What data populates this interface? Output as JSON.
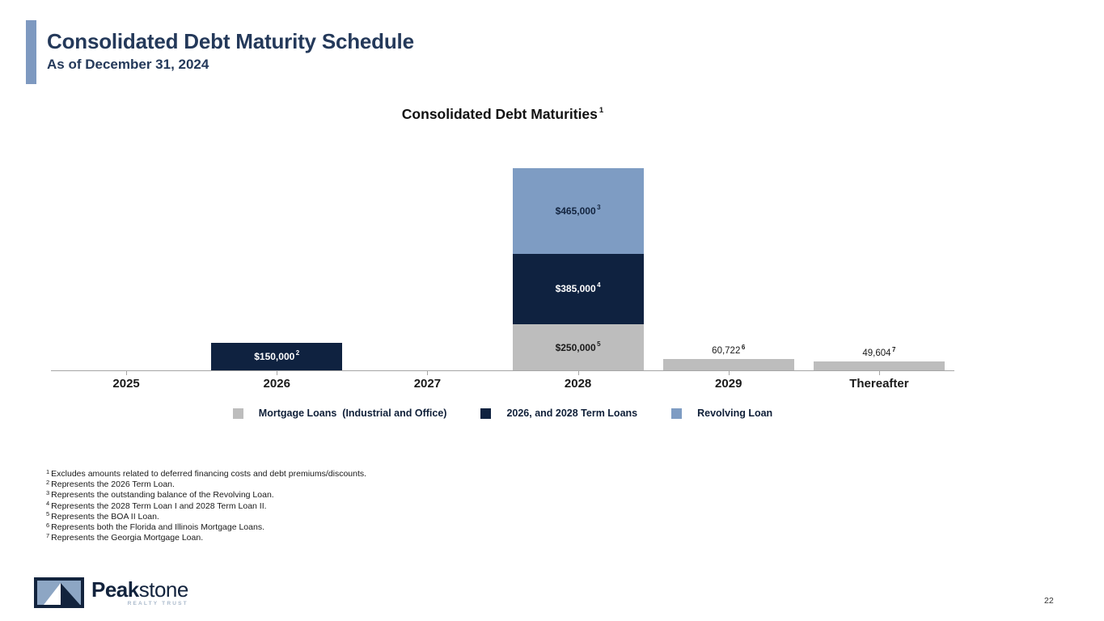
{
  "header": {
    "title": "Consolidated Debt Maturity Schedule",
    "subtitle": "As of December 31, 2024"
  },
  "chart_data": {
    "type": "stacked-bar",
    "title": "Consolidated Debt Maturities",
    "title_superscript": "1",
    "xlabel": "",
    "ylabel": "",
    "y_axis_visible": false,
    "grid": false,
    "legend_position": "bottom",
    "axis_color": "#a6a6a6",
    "categories": [
      "2025",
      "2026",
      "2027",
      "2028",
      "2029",
      "Thereafter"
    ],
    "series": [
      {
        "name": "Mortgage Loans  (Industrial and Office)",
        "color": "#bdbdbd",
        "label_color": "#1a1a1a",
        "values": [
          null,
          null,
          null,
          250000,
          60722,
          49604
        ],
        "labels": [
          null,
          null,
          null,
          "$250,000",
          "60,722",
          "49,604"
        ],
        "sups": [
          null,
          null,
          null,
          "5",
          "6",
          "7"
        ]
      },
      {
        "name": "2026, and 2028 Term Loans",
        "color": "#0f2240",
        "label_color": "#ffffff",
        "values": [
          null,
          150000,
          null,
          385000,
          null,
          null
        ],
        "labels": [
          null,
          "$150,000",
          null,
          "$385,000",
          null,
          null
        ],
        "sups": [
          null,
          "2",
          null,
          "4",
          null,
          null
        ]
      },
      {
        "name": "Revolving Loan",
        "color": "#7e9cc3",
        "label_color": "#13243f",
        "values": [
          null,
          null,
          null,
          465000,
          null,
          null
        ],
        "labels": [
          null,
          null,
          null,
          "$465,000",
          null,
          null
        ],
        "sups": [
          null,
          null,
          null,
          "3",
          null,
          null
        ]
      }
    ]
  },
  "footnotes": [
    {
      "sup": "1",
      "text": "Excludes amounts related to deferred financing costs and debt premiums/discounts."
    },
    {
      "sup": "2",
      "text": "Represents the 2026 Term Loan."
    },
    {
      "sup": "3",
      "text": "Represents the outstanding balance of the Revolving Loan."
    },
    {
      "sup": "4",
      "text": "Represents the 2028 Term Loan I and 2028 Term Loan II."
    },
    {
      "sup": "5",
      "text": "Represents the BOA II Loan."
    },
    {
      "sup": "6",
      "text": "Represents both the Florida and Illinois Mortgage Loans."
    },
    {
      "sup": "7",
      "text": "Represents the Georgia Mortgage Loan."
    }
  ],
  "footer": {
    "logo_bold": "Peak",
    "logo_light": "stone",
    "logo_tagline": "REALTY TRUST",
    "page_number": "22"
  }
}
